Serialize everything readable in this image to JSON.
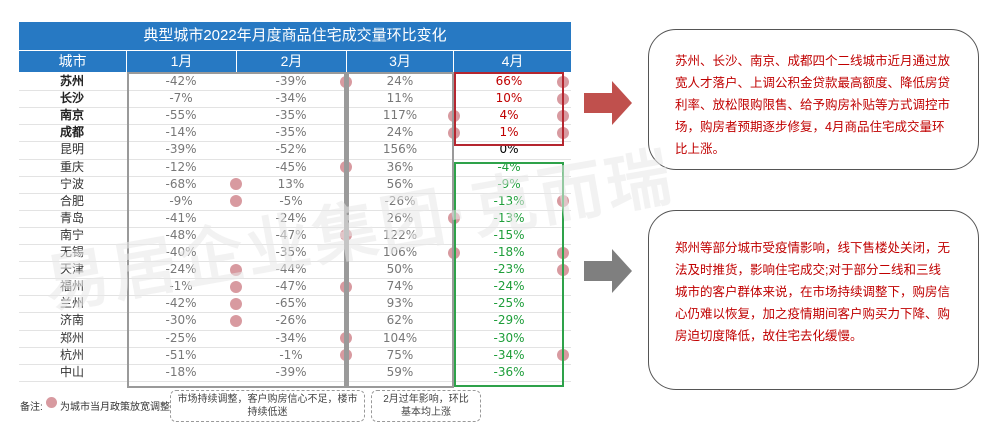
{
  "chart_data": {
    "type": "table",
    "title": "典型城市2022年月度商品住宅成交量环比变化",
    "columns": [
      "城市",
      "1月",
      "2月",
      "3月",
      "4月"
    ],
    "rows": [
      {
        "city": "苏州",
        "bold": true,
        "values": [
          "-42%",
          "-39%",
          "24%",
          "66%"
        ],
        "dots": [
          false,
          true,
          false,
          true
        ]
      },
      {
        "city": "长沙",
        "bold": true,
        "values": [
          "-7%",
          "-34%",
          "11%",
          "10%"
        ],
        "dots": [
          false,
          false,
          false,
          true
        ]
      },
      {
        "city": "南京",
        "bold": true,
        "values": [
          "-55%",
          "-35%",
          "117%",
          "4%"
        ],
        "dots": [
          false,
          false,
          true,
          true
        ]
      },
      {
        "city": "成都",
        "bold": true,
        "values": [
          "-14%",
          "-35%",
          "24%",
          "1%"
        ],
        "dots": [
          false,
          false,
          true,
          true
        ]
      },
      {
        "city": "昆明",
        "bold": false,
        "values": [
          "-39%",
          "-52%",
          "156%",
          "0%"
        ],
        "dots": [
          false,
          false,
          false,
          false
        ]
      },
      {
        "city": "重庆",
        "bold": false,
        "values": [
          "-12%",
          "-45%",
          "36%",
          "-4%"
        ],
        "dots": [
          false,
          true,
          false,
          false
        ]
      },
      {
        "city": "宁波",
        "bold": false,
        "values": [
          "-68%",
          "13%",
          "56%",
          "-9%"
        ],
        "dots": [
          true,
          false,
          false,
          false
        ]
      },
      {
        "city": "合肥",
        "bold": false,
        "values": [
          "-9%",
          "-5%",
          "-26%",
          "-13%"
        ],
        "dots": [
          true,
          false,
          false,
          true
        ]
      },
      {
        "city": "青岛",
        "bold": false,
        "values": [
          "-41%",
          "-24%",
          "26%",
          "-13%"
        ],
        "dots": [
          false,
          false,
          true,
          false
        ]
      },
      {
        "city": "南宁",
        "bold": false,
        "values": [
          "-48%",
          "-47%",
          "122%",
          "-15%"
        ],
        "dots": [
          false,
          true,
          false,
          false
        ]
      },
      {
        "city": "无锡",
        "bold": false,
        "values": [
          "-40%",
          "-35%",
          "106%",
          "-18%"
        ],
        "dots": [
          false,
          false,
          true,
          true
        ]
      },
      {
        "city": "天津",
        "bold": false,
        "values": [
          "-24%",
          "-44%",
          "50%",
          "-23%"
        ],
        "dots": [
          true,
          false,
          false,
          true
        ]
      },
      {
        "city": "福州",
        "bold": false,
        "values": [
          "-1%",
          "-47%",
          "74%",
          "-24%"
        ],
        "dots": [
          true,
          true,
          false,
          false
        ]
      },
      {
        "city": "兰州",
        "bold": false,
        "values": [
          "-42%",
          "-65%",
          "93%",
          "-25%"
        ],
        "dots": [
          true,
          false,
          false,
          false
        ]
      },
      {
        "city": "济南",
        "bold": false,
        "values": [
          "-30%",
          "-26%",
          "62%",
          "-29%"
        ],
        "dots": [
          true,
          false,
          false,
          false
        ]
      },
      {
        "city": "郑州",
        "bold": false,
        "values": [
          "-25%",
          "-34%",
          "104%",
          "-30%"
        ],
        "dots": [
          false,
          true,
          false,
          false
        ]
      },
      {
        "city": "杭州",
        "bold": false,
        "values": [
          "-51%",
          "-1%",
          "75%",
          "-34%"
        ],
        "dots": [
          false,
          true,
          false,
          true
        ]
      },
      {
        "city": "中山",
        "bold": false,
        "values": [
          "-18%",
          "-39%",
          "59%",
          "-36%"
        ],
        "dots": [
          false,
          false,
          false,
          false
        ]
      }
    ],
    "colors": {
      "header": "#2779c3",
      "dot": "#d89aa0",
      "positive_frame": "#b5262f",
      "negative_frame": "#2ea24a",
      "positive_text": "#c00000",
      "negative_text": "#1e9e3a"
    }
  },
  "note": {
    "prefix": "备注:",
    "text": "为城市当月政策放宽调整"
  },
  "callouts": [
    {
      "text": "市场持续调整，客户购房信心不足，楼市持续低迷"
    },
    {
      "text": "2月过年影响，环比基本均上涨"
    }
  ],
  "boxes": [
    {
      "text": "苏州、长沙、南京、成都四个二线城市近月通过放宽人才落户、上调公积金贷款最高额度、降低房贷利率、放松限购限售、给予购房补贴等方式调控市场，购房者预期逐步修复，4月商品住宅成交量环比上涨。"
    },
    {
      "text": "郑州等部分城市受疫情影响，线下售楼处关闭，无法及时推货，影响住宅成交;对于部分二线和三线城市的客户群体来说，在市场持续调整下，购房信心仍难以恢复，加之疫情期间客户购买力下降、购房迫切度降低，故住宅去化缓慢。"
    }
  ],
  "watermark": {
    "text": "易居企业集团·克而瑞"
  }
}
